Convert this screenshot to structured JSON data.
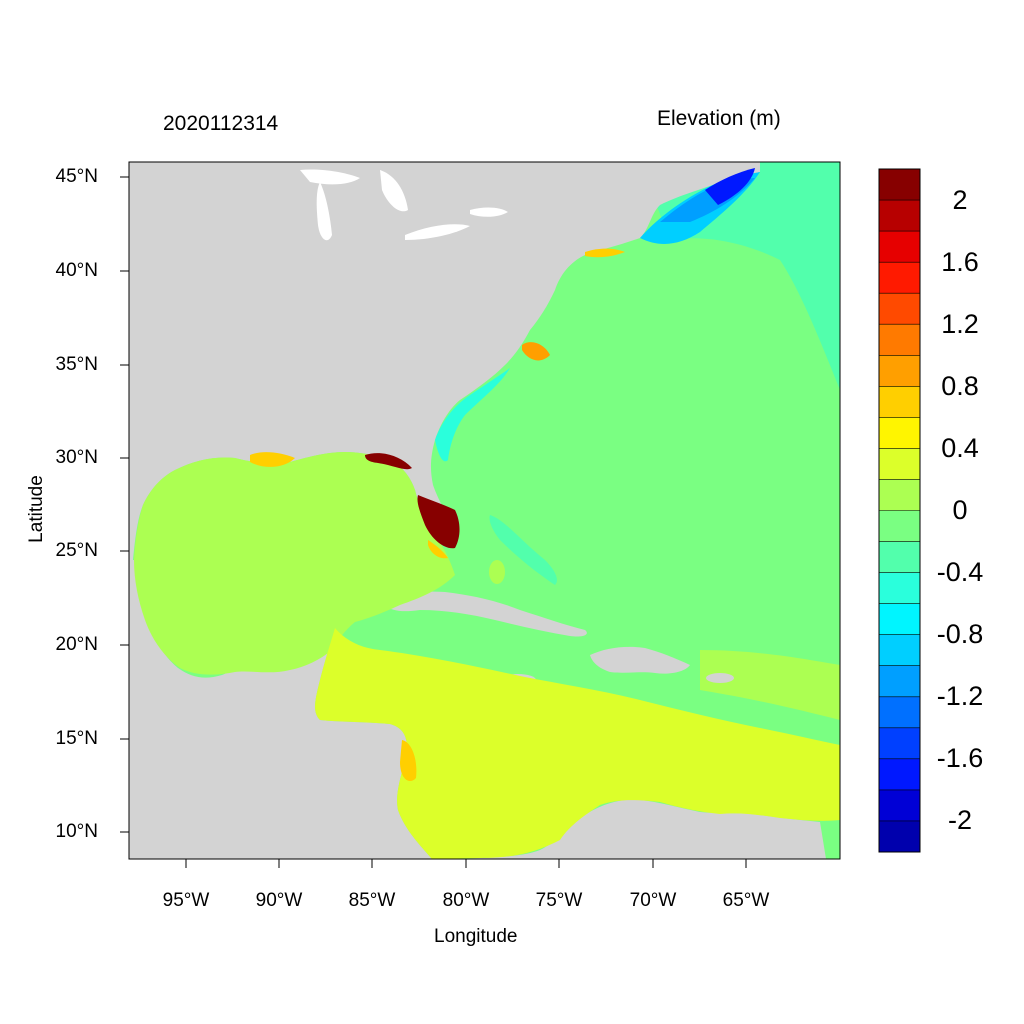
{
  "header": {
    "timestamp": "2020112314",
    "variable": "Elevation (m)"
  },
  "axes": {
    "xlabel": "Longitude",
    "ylabel": "Latitude",
    "lon_ticks": [
      "95°W",
      "90°W",
      "85°W",
      "80°W",
      "75°W",
      "70°W",
      "65°W"
    ],
    "lat_ticks": [
      "45°N",
      "40°N",
      "35°N",
      "30°N",
      "25°N",
      "20°N",
      "15°N",
      "10°N"
    ]
  },
  "colorbar": {
    "labels": [
      "2",
      "1.6",
      "1.2",
      "0.8",
      "0.4",
      "0",
      "-0.4",
      "-0.8",
      "-1.2",
      "-1.6",
      "-2"
    ],
    "colors": [
      "#870000",
      "#b70000",
      "#e60000",
      "#ff1a00",
      "#ff4a00",
      "#ff7a00",
      "#ff9f00",
      "#ffcf00",
      "#fff500",
      "#dcff2a",
      "#acff52",
      "#7aff82",
      "#52ffac",
      "#2affdc",
      "#00f5ff",
      "#00cfff",
      "#009fff",
      "#0070ff",
      "#0040ff",
      "#0018ff",
      "#0000d6",
      "#0000ad"
    ]
  },
  "map_colors": {
    "land": "#d3d3d3",
    "water_inland": "#ffffff",
    "ocean_zero": "#7aff82",
    "gulf": "#acff52",
    "caribbean": "#dcff2a",
    "nw_atlantic": "#52ffac",
    "gulf_of_maine": "#00cfff",
    "bay_of_fundy": "#0018ff",
    "florida_surge": "#870000"
  }
}
